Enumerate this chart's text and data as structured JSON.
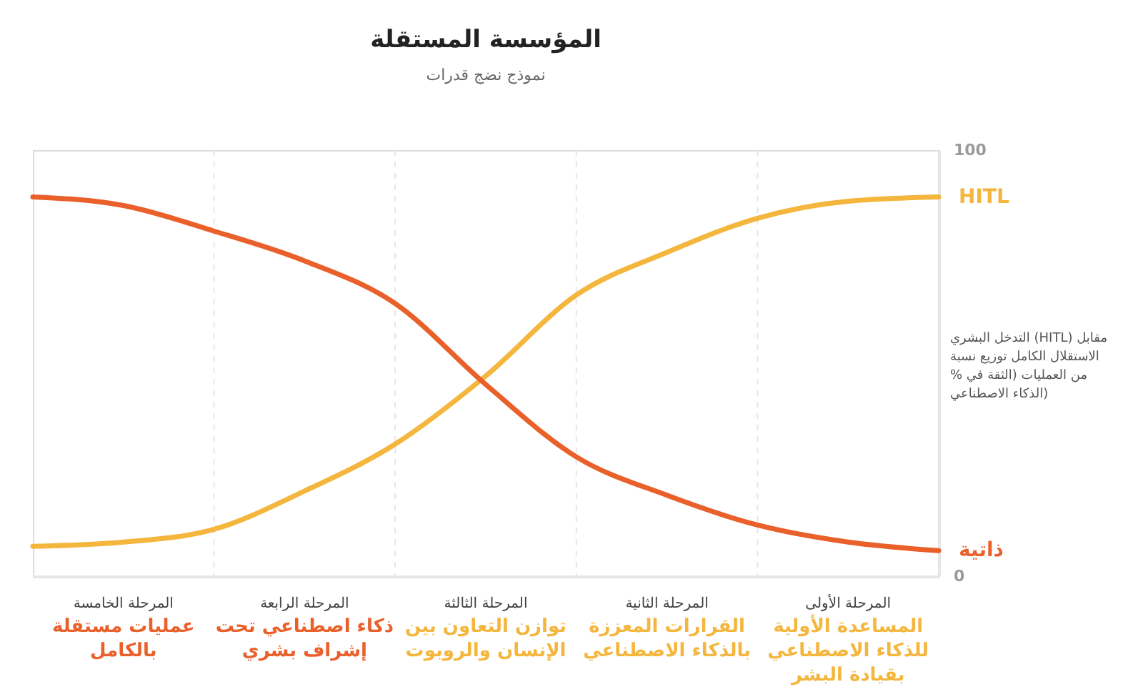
{
  "chart_data": {
    "type": "line",
    "title": "المؤسسة المستقلة",
    "subtitle": "نموذج نضج قدرات",
    "ylabel": "التدخل البشري (HITL) مقابل الاستقلال الكامل توزيع نسبة % من العمليات (الثقة في الذكاء الاصطناعي)",
    "categories": [
      null,
      null,
      null,
      null,
      null,
      null,
      null,
      null,
      null,
      null,
      null
    ],
    "series": [
      {
        "name": "HITL",
        "color": "#f4b63d",
        "values": [
          7,
          8,
          11,
          20,
          31,
          47,
          66,
          76,
          84,
          88,
          89
        ]
      },
      {
        "name": "ذاتية",
        "color": "#e9602b",
        "values": [
          89,
          87,
          81,
          74,
          64,
          45,
          28,
          19,
          12,
          8,
          6
        ]
      }
    ],
    "ylim": [
      0,
      100
    ],
    "yticks": [
      0,
      100
    ],
    "grid": "x",
    "legend": false,
    "marker": "none",
    "line_style": "solid",
    "annotations": [
      "المرحلة الخامسة",
      "عمليات مستقلة بالكامل",
      "المرحلة الرابعة",
      "ذكاء اصطناعي تحت إشراف بشري",
      "المرحلة الثالثة",
      "توازن التعاون بين الإنسان والروبوت",
      "المرحلة الثانية",
      "القرارات المعززة بالذكاء الاصطناعي",
      "المرحلة الأولى",
      "المساعدة الأولية للذكاء الاصطناعي بقيادة البشر"
    ]
  }
}
